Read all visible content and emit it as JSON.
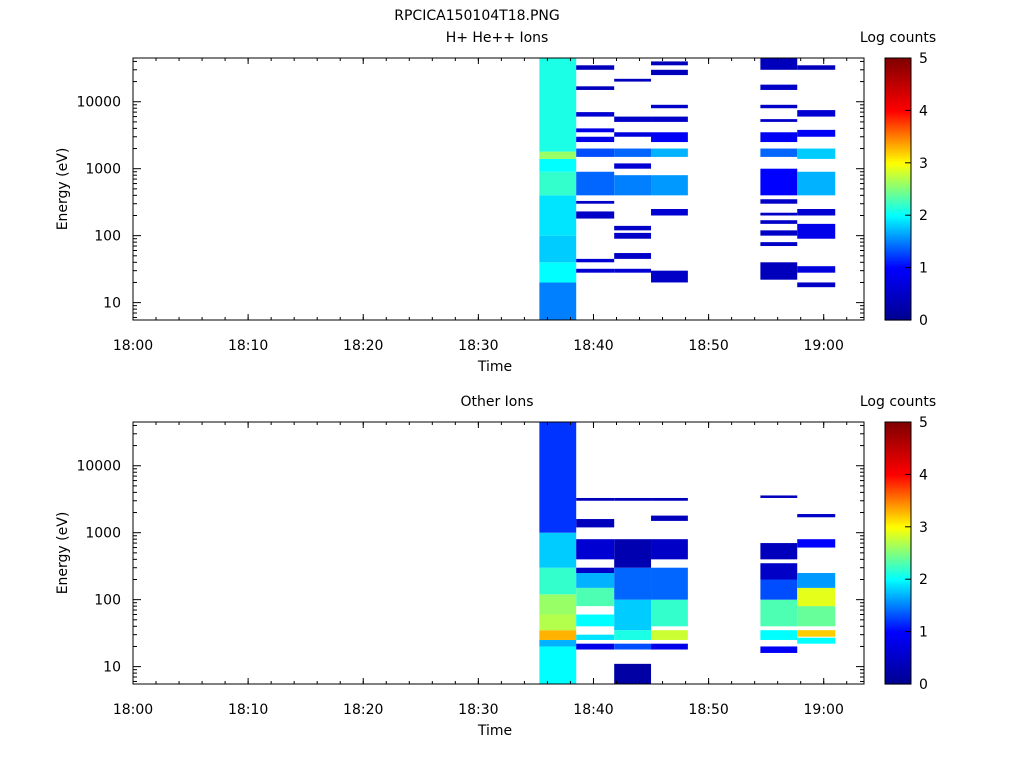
{
  "figure_title": "RPCICA150104T18.PNG",
  "chart_data": [
    {
      "type": "heatmap",
      "title": "H+ He++ Ions",
      "xlabel": "Time",
      "ylabel": "Energy (eV)",
      "colorbar_label": "Log counts",
      "x_ticks": [
        "18:00",
        "18:10",
        "18:20",
        "18:30",
        "18:40",
        "18:50",
        "19:00"
      ],
      "y_ticks": [
        "10",
        "100",
        "1000",
        "10000"
      ],
      "y_scale": "log",
      "ylim": [
        5.5,
        45000
      ],
      "xlim_minutes_after_1800": [
        0,
        63.5
      ],
      "colorbar_ticks": [
        "0",
        "1",
        "2",
        "3",
        "4",
        "5"
      ],
      "colorbar_range": [
        0,
        5
      ],
      "colormap": [
        "#00008f",
        "#0000ff",
        "#00ffff",
        "#ffff00",
        "#ff0000",
        "#800000"
      ],
      "columns": [
        {
          "t_start": 35.3,
          "t_end": 38.5,
          "bands": [
            [
              5.5,
              20,
              1.5
            ],
            [
              20,
              40,
              2.0
            ],
            [
              40,
              100,
              1.8
            ],
            [
              100,
              400,
              1.9
            ],
            [
              400,
              900,
              2.2
            ],
            [
              900,
              1400,
              2.0
            ],
            [
              1400,
              1800,
              2.6
            ],
            [
              1800,
              45000,
              2.1
            ]
          ]
        },
        {
          "t_start": 38.5,
          "t_end": 41.8,
          "bands": [
            [
              28,
              32,
              0.6
            ],
            [
              40,
              45,
              0.6
            ],
            [
              180,
              200,
              0.5
            ],
            [
              200,
              230,
              0.5
            ],
            [
              300,
              330,
              0.5
            ],
            [
              400,
              900,
              1.4
            ],
            [
              1500,
              2000,
              1.3
            ],
            [
              2500,
              3000,
              0.8
            ],
            [
              3500,
              4000,
              0.8
            ],
            [
              6000,
              7000,
              0.6
            ],
            [
              15000,
              17000,
              0.4
            ],
            [
              30000,
              35000,
              0.4
            ]
          ]
        },
        {
          "t_start": 41.8,
          "t_end": 45.0,
          "bands": [
            [
              28,
              32,
              0.6
            ],
            [
              45,
              55,
              0.5
            ],
            [
              90,
              110,
              0.5
            ],
            [
              120,
              140,
              0.5
            ],
            [
              400,
              800,
              1.5
            ],
            [
              1000,
              1200,
              0.6
            ],
            [
              1500,
              2000,
              1.4
            ],
            [
              3000,
              3500,
              0.7
            ],
            [
              5000,
              6000,
              0.5
            ],
            [
              20000,
              22000,
              0.4
            ]
          ]
        },
        {
          "t_start": 45.0,
          "t_end": 48.2,
          "bands": [
            [
              20,
              30,
              0.5
            ],
            [
              200,
              250,
              0.6
            ],
            [
              400,
              800,
              1.6
            ],
            [
              1500,
              2000,
              1.7
            ],
            [
              2500,
              3500,
              0.9
            ],
            [
              5000,
              6000,
              0.5
            ],
            [
              8000,
              9000,
              0.5
            ],
            [
              25000,
              30000,
              0.4
            ],
            [
              35000,
              40000,
              0.4
            ]
          ]
        },
        {
          "t_start": 54.5,
          "t_end": 57.7,
          "bands": [
            [
              22,
              40,
              0.4
            ],
            [
              70,
              80,
              0.5
            ],
            [
              100,
              120,
              0.5
            ],
            [
              150,
              170,
              0.5
            ],
            [
              200,
              220,
              0.5
            ],
            [
              300,
              350,
              0.5
            ],
            [
              400,
              1000,
              1.0
            ],
            [
              1500,
              2000,
              1.4
            ],
            [
              2500,
              3500,
              0.9
            ],
            [
              5000,
              5500,
              0.5
            ],
            [
              8000,
              9000,
              0.5
            ],
            [
              15000,
              18000,
              0.5
            ],
            [
              30000,
              45000,
              0.4
            ]
          ]
        },
        {
          "t_start": 57.7,
          "t_end": 61.0,
          "bands": [
            [
              17,
              20,
              0.5
            ],
            [
              28,
              35,
              0.7
            ],
            [
              90,
              150,
              0.8
            ],
            [
              200,
              250,
              0.6
            ],
            [
              400,
              900,
              1.7
            ],
            [
              1400,
              2000,
              1.8
            ],
            [
              3000,
              3800,
              0.9
            ],
            [
              6000,
              7500,
              0.6
            ],
            [
              30000,
              35000,
              0.4
            ]
          ]
        }
      ]
    },
    {
      "type": "heatmap",
      "title": "Other Ions",
      "xlabel": "Time",
      "ylabel": "Energy (eV)",
      "colorbar_label": "Log counts",
      "x_ticks": [
        "18:00",
        "18:10",
        "18:20",
        "18:30",
        "18:40",
        "18:50",
        "19:00"
      ],
      "y_ticks": [
        "10",
        "100",
        "1000",
        "10000"
      ],
      "y_scale": "log",
      "ylim": [
        5.5,
        45000
      ],
      "xlim_minutes_after_1800": [
        0,
        63.5
      ],
      "colorbar_ticks": [
        "0",
        "1",
        "2",
        "3",
        "4",
        "5"
      ],
      "colorbar_range": [
        0,
        5
      ],
      "colormap": [
        "#00008f",
        "#0000ff",
        "#00ffff",
        "#ffff00",
        "#ff0000",
        "#800000"
      ],
      "columns": [
        {
          "t_start": 35.3,
          "t_end": 38.5,
          "bands": [
            [
              5.5,
              20,
              2.0
            ],
            [
              20,
              25,
              1.7
            ],
            [
              25,
              35,
              3.3
            ],
            [
              35,
              60,
              2.7
            ],
            [
              60,
              120,
              2.6
            ],
            [
              120,
              300,
              2.2
            ],
            [
              300,
              1000,
              1.8
            ],
            [
              1000,
              45000,
              1.2
            ]
          ]
        },
        {
          "t_start": 38.5,
          "t_end": 41.8,
          "bands": [
            [
              18,
              22,
              0.8
            ],
            [
              25,
              30,
              1.9
            ],
            [
              40,
              60,
              2.0
            ],
            [
              80,
              150,
              2.3
            ],
            [
              150,
              250,
              1.7
            ],
            [
              250,
              300,
              0.5
            ],
            [
              400,
              800,
              0.6
            ],
            [
              1200,
              1600,
              0.4
            ],
            [
              3000,
              3300,
              0.4
            ]
          ]
        },
        {
          "t_start": 41.8,
          "t_end": 45.0,
          "bands": [
            [
              5.5,
              11,
              0.2
            ],
            [
              18,
              22,
              1.3
            ],
            [
              25,
              35,
              2.1
            ],
            [
              35,
              100,
              1.8
            ],
            [
              100,
              300,
              1.4
            ],
            [
              300,
              800,
              0.3
            ],
            [
              3000,
              3300,
              0.4
            ]
          ]
        },
        {
          "t_start": 45.0,
          "t_end": 48.2,
          "bands": [
            [
              18,
              22,
              0.8
            ],
            [
              25,
              35,
              2.8
            ],
            [
              40,
              100,
              2.2
            ],
            [
              100,
              300,
              1.4
            ],
            [
              400,
              800,
              0.5
            ],
            [
              1500,
              1800,
              0.4
            ],
            [
              3000,
              3300,
              0.4
            ]
          ]
        },
        {
          "t_start": 54.5,
          "t_end": 57.7,
          "bands": [
            [
              16,
              20,
              0.9
            ],
            [
              25,
              35,
              2.0
            ],
            [
              40,
              100,
              2.3
            ],
            [
              100,
              200,
              1.3
            ],
            [
              200,
              350,
              0.5
            ],
            [
              400,
              700,
              0.4
            ],
            [
              3300,
              3600,
              0.4
            ]
          ]
        },
        {
          "t_start": 57.7,
          "t_end": 61.0,
          "bands": [
            [
              22,
              27,
              2.0
            ],
            [
              28,
              35,
              3.2
            ],
            [
              40,
              80,
              2.4
            ],
            [
              80,
              150,
              2.9
            ],
            [
              150,
              250,
              1.6
            ],
            [
              600,
              800,
              1.0
            ],
            [
              1700,
              1900,
              0.5
            ]
          ]
        }
      ]
    }
  ]
}
